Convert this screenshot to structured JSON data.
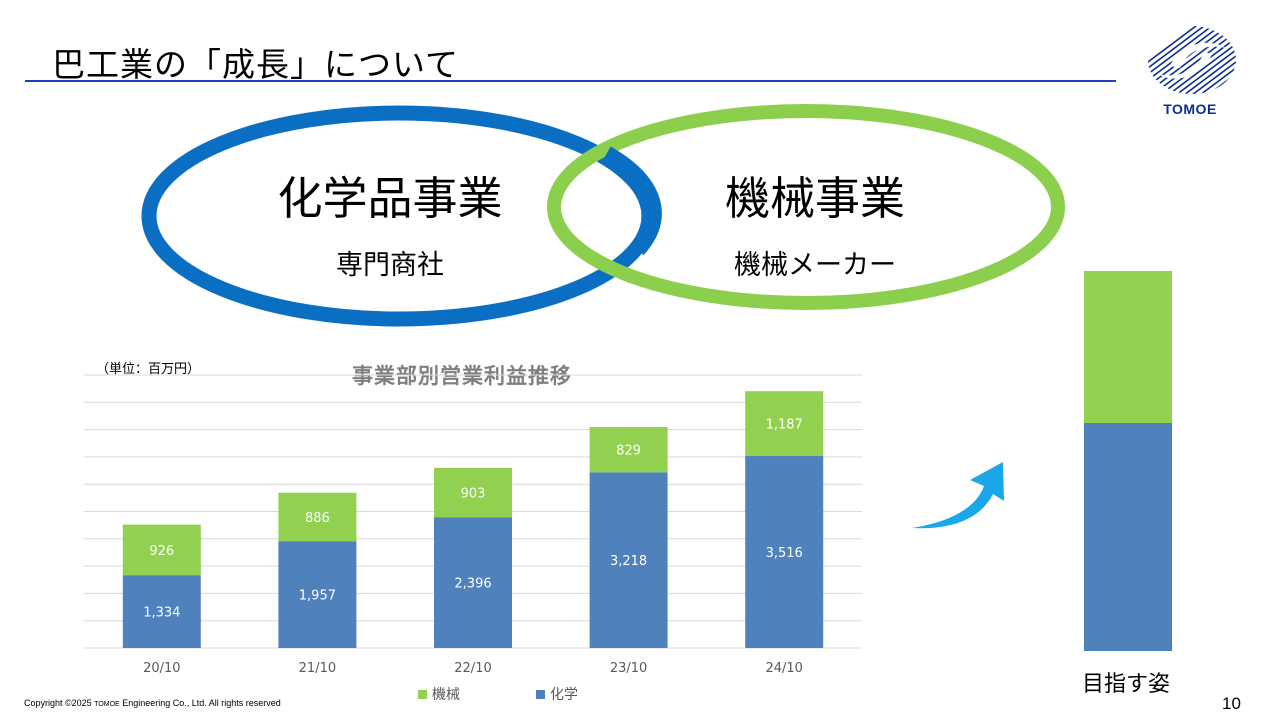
{
  "header": {
    "title": "巴工業の「成長」について",
    "logo_text": "TOMOE",
    "logo_color": "#0d2f8f",
    "rule_color": "#1f3fbf"
  },
  "venn": {
    "left": {
      "heading": "化学品事業",
      "sub": "専門商社",
      "color": "#0a6fc2"
    },
    "right": {
      "heading": "機械事業",
      "sub": "機械メーカー",
      "color": "#8ccf4d"
    }
  },
  "chart_data": {
    "type": "bar",
    "stacked": true,
    "title": "事業部別営業利益推移",
    "unit_note": "（単位：百万円）",
    "categories": [
      "20/10",
      "21/10",
      "22/10",
      "23/10",
      "24/10"
    ],
    "series": [
      {
        "name": "化学",
        "color": "#4f81bd",
        "values": [
          1334,
          1957,
          2396,
          3218,
          3516
        ]
      },
      {
        "name": "機械",
        "color": "#92d050",
        "values": [
          926,
          886,
          903,
          829,
          1187
        ]
      }
    ],
    "value_labels": {
      "化学": [
        "1,334",
        "1,957",
        "2,396",
        "3,218",
        "3,516"
      ],
      "機械": [
        "926",
        "886",
        "903",
        "829",
        "1,187"
      ]
    },
    "ylim": [
      0,
      5000
    ],
    "grid": true,
    "legend_position": "bottom"
  },
  "legend": {
    "machine": "機械",
    "chemical": "化学"
  },
  "goal": {
    "label": "目指す姿",
    "arrow_color": "#1aa7e8"
  },
  "footer": {
    "copyright_prefix": "Copyright ©2025 ",
    "copyright_brand": "TOMOE",
    "copyright_suffix": " Engineering Co., Ltd. All rights reserved",
    "page_number": "10"
  }
}
